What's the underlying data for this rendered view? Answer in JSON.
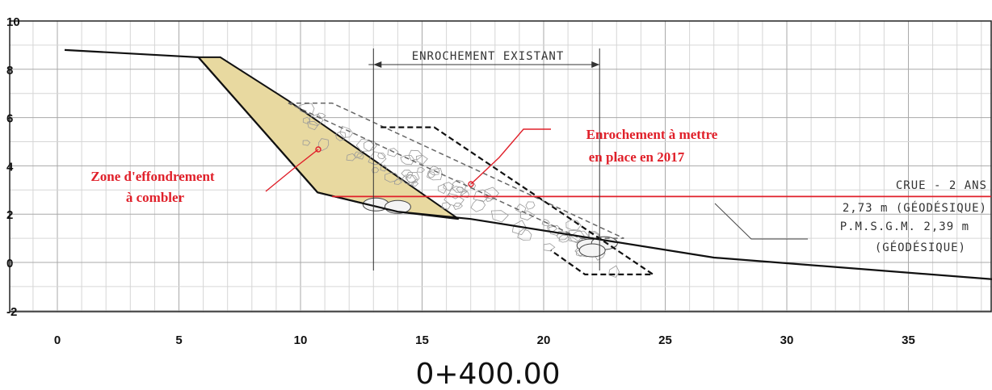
{
  "chart_data": {
    "type": "cross-section",
    "xlim": [
      0,
      38.5
    ],
    "ylim": [
      -2,
      10
    ],
    "x_ticks": [
      0,
      5,
      10,
      15,
      20,
      25,
      30,
      35
    ],
    "y_ticks": [
      10,
      8,
      6,
      4,
      2,
      0,
      -2
    ],
    "station_label": "0+400.00",
    "ground_profile": [
      [
        0.3,
        8.8
      ],
      [
        5.8,
        8.5
      ],
      [
        10.7,
        2.9
      ],
      [
        14,
        2.1
      ],
      [
        17,
        1.8
      ],
      [
        22,
        1.0
      ],
      [
        27,
        0.2
      ],
      [
        38.5,
        -0.7
      ]
    ],
    "collapse_zone": [
      [
        5.8,
        8.5
      ],
      [
        6.7,
        8.5
      ],
      [
        9.5,
        6.7
      ],
      [
        16.5,
        1.8
      ],
      [
        14,
        2.1
      ],
      [
        10.7,
        2.9
      ]
    ],
    "planned_riprap_outline": [
      [
        9.5,
        6.6
      ],
      [
        11.3,
        6.6
      ],
      [
        23.3,
        1.0
      ],
      [
        21.5,
        1.0
      ]
    ],
    "existing_riprap_outline": [
      [
        13.3,
        5.6
      ],
      [
        15.5,
        5.6
      ],
      [
        24.5,
        -0.5
      ],
      [
        21.7,
        -0.5
      ],
      [
        20.3,
        0.5
      ]
    ],
    "existing_riprap_extent": [
      13,
      22.3
    ],
    "flood_level": 2.73,
    "annotations": {
      "existing": "ENROCHEMENT EXISTANT",
      "planned_line1": "Enrochement à mettre",
      "planned_line2": "en place en 2017",
      "zone_line1": "Zone d'effondrement",
      "zone_line2": "à combler",
      "crue": "CRUE  -  2 ANS",
      "crue_value": "2,73  m  (GÉODÉSIQUE)",
      "pmsgm": "P.M.S.G.M.  2,39  m",
      "geodesique": "(GÉODÉSIQUE)"
    },
    "colors": {
      "fill_zone": "#e8d9a0",
      "flood_line": "#e0202a",
      "label_red": "#e0202a",
      "grid": "#bdbdbd"
    }
  }
}
